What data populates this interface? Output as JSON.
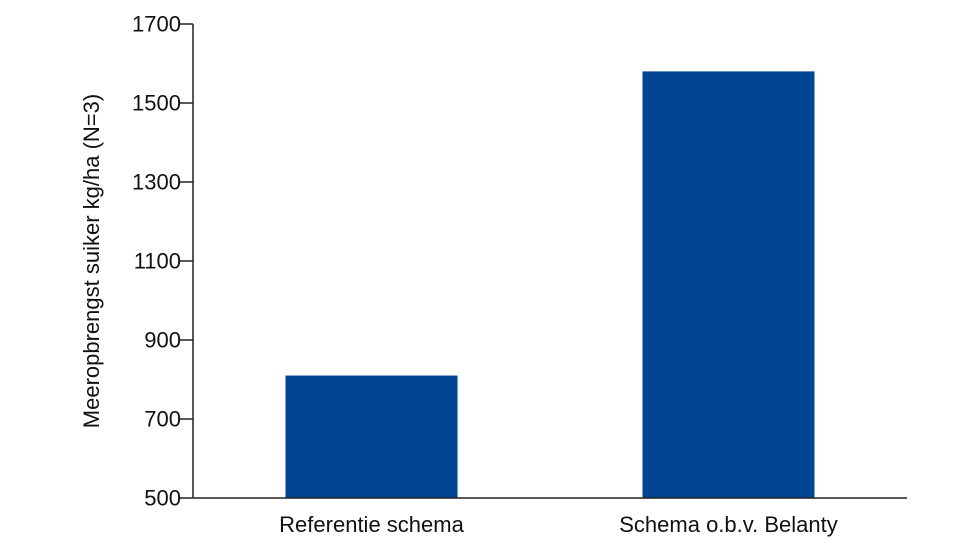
{
  "chart_data": {
    "type": "bar",
    "categories": [
      "Referentie schema",
      "Schema o.b.v. Belanty"
    ],
    "values": [
      810,
      1580
    ],
    "ylabel": "Meeropbrengst suiker kg/ha (N=3)",
    "xlabel": "",
    "ylim": [
      500,
      1700
    ],
    "yticks": [
      500,
      700,
      900,
      1100,
      1300,
      1500,
      1700
    ],
    "bar_color": "#004494",
    "grid": false,
    "legend": "none"
  }
}
